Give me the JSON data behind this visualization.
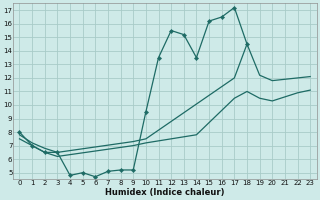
{
  "xlabel": "Humidex (Indice chaleur)",
  "bg_color": "#ceeae8",
  "grid_color": "#a8ccc8",
  "line_color": "#1e6b65",
  "xlim": [
    -0.5,
    23.5
  ],
  "ylim": [
    4.5,
    17.5
  ],
  "xticks": [
    0,
    1,
    2,
    3,
    4,
    5,
    6,
    7,
    8,
    9,
    10,
    11,
    12,
    13,
    14,
    15,
    16,
    17,
    18,
    19,
    20,
    21,
    22,
    23
  ],
  "yticks": [
    5,
    6,
    7,
    8,
    9,
    10,
    11,
    12,
    13,
    14,
    15,
    16,
    17
  ],
  "line1_x": [
    0,
    1,
    2,
    3,
    4,
    5,
    6,
    7,
    8,
    9,
    10,
    11,
    12,
    13,
    14,
    15,
    16,
    17,
    18
  ],
  "line1_y": [
    8.0,
    7.0,
    6.5,
    6.5,
    4.8,
    5.0,
    4.7,
    5.1,
    5.2,
    5.2,
    9.5,
    13.5,
    15.5,
    15.2,
    13.5,
    16.2,
    16.5,
    17.2,
    14.5
  ],
  "line2_x": [
    0,
    1,
    2,
    3,
    9,
    10,
    17,
    18,
    19,
    20,
    21,
    22,
    23
  ],
  "line2_y": [
    7.8,
    7.2,
    6.8,
    6.5,
    7.3,
    7.5,
    12.0,
    14.5,
    12.2,
    11.8,
    11.9,
    12.0,
    12.1
  ],
  "line3_x": [
    0,
    1,
    2,
    3,
    9,
    10,
    14,
    17,
    18,
    19,
    20,
    21,
    22,
    23
  ],
  "line3_y": [
    7.5,
    7.0,
    6.5,
    6.2,
    7.0,
    7.2,
    7.8,
    10.5,
    11.0,
    10.5,
    10.3,
    10.6,
    10.9,
    11.1
  ]
}
